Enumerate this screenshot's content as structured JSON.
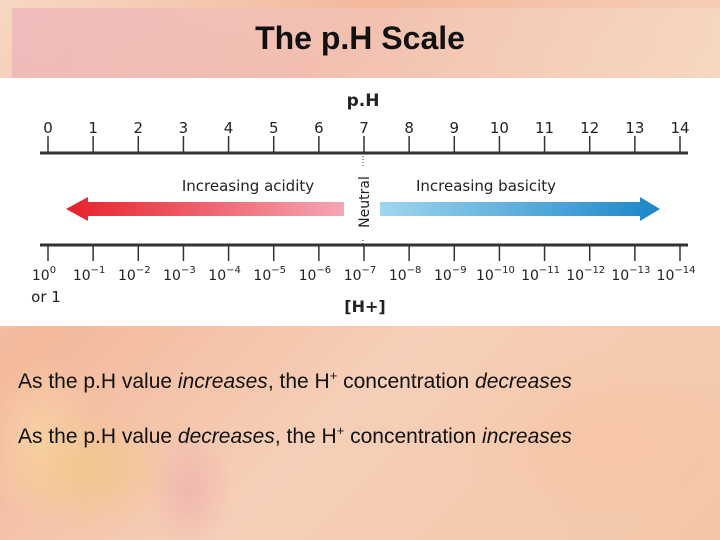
{
  "slide": {
    "title": "The p.H Scale",
    "statements": [
      {
        "prefix": "As the p.H value ",
        "emphasis1": "increases",
        "middle": ", the H",
        "charge": "+",
        "suffix": " concentration ",
        "emphasis2": "decreases"
      },
      {
        "prefix": "As the p.H value ",
        "emphasis1": "decreases",
        "middle": ", the H",
        "charge": "+",
        "suffix": " concentration ",
        "emphasis2": "increases"
      }
    ]
  },
  "diagram": {
    "top_axis_label": "p.H",
    "ph_values": [
      "0",
      "1",
      "2",
      "3",
      "4",
      "5",
      "6",
      "7",
      "8",
      "9",
      "10",
      "11",
      "12",
      "13",
      "14"
    ],
    "conc_base": "10",
    "conc_exponents": [
      "0",
      "−1",
      "−2",
      "−3",
      "−4",
      "−5",
      "−6",
      "−7",
      "−8",
      "−9",
      "−10",
      "−11",
      "−12",
      "−13",
      "−14"
    ],
    "first_alt_label": "or 1",
    "bottom_axis_label": "[H+]",
    "neutral_label": "Neutral",
    "acidity_label": "Increasing acidity",
    "basicity_label": "Increasing basicity",
    "colors": {
      "acid_strong": "#e8202a",
      "acid_light": "#f6a6b4",
      "base_light": "#9fd6ee",
      "base_strong": "#1a86c8",
      "axis": "#333333"
    }
  }
}
